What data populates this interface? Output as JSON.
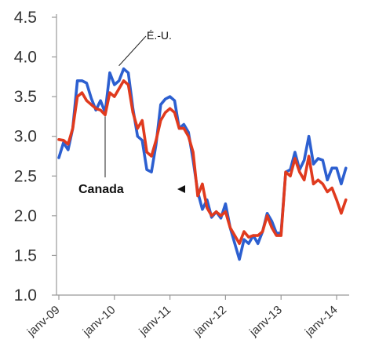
{
  "chart_data": {
    "type": "line",
    "title": "",
    "xlabel": "",
    "ylabel": "",
    "ylim": [
      1.0,
      4.5
    ],
    "yticks": [
      "1.0",
      "1.5",
      "2.0",
      "2.5",
      "3.0",
      "3.5",
      "4.0",
      "4.5"
    ],
    "xticks": [
      "janv-09",
      "janv-10",
      "janv-11",
      "janv-12",
      "janv-13",
      "janv-14"
    ],
    "grid": false,
    "legend": "none",
    "start_month": "janv-09",
    "annotations": [
      {
        "text": "É.-U.",
        "series": "É.-U."
      },
      {
        "text": "Canada",
        "series": "Canada"
      }
    ],
    "series": [
      {
        "name": "É.-U.",
        "color": "#2c5fd0",
        "values": [
          2.73,
          2.92,
          2.83,
          3.1,
          3.7,
          3.7,
          3.67,
          3.48,
          3.33,
          3.45,
          3.3,
          3.8,
          3.65,
          3.7,
          3.85,
          3.8,
          3.35,
          3.0,
          2.95,
          2.58,
          2.55,
          2.9,
          3.4,
          3.47,
          3.5,
          3.45,
          3.1,
          3.15,
          3.05,
          2.7,
          2.3,
          2.08,
          2.2,
          1.98,
          2.05,
          1.97,
          2.15,
          1.85,
          1.65,
          1.45,
          1.7,
          1.65,
          1.75,
          1.65,
          1.8,
          2.03,
          1.93,
          1.78,
          1.78,
          2.55,
          2.58,
          2.8,
          2.58,
          2.7,
          3.0,
          2.65,
          2.72,
          2.7,
          2.45,
          2.6,
          2.6,
          2.4,
          2.6
        ]
      },
      {
        "name": "Canada",
        "color": "#e03a1e",
        "values": [
          2.96,
          2.95,
          2.9,
          3.1,
          3.5,
          3.55,
          3.45,
          3.4,
          3.35,
          3.33,
          3.27,
          3.55,
          3.5,
          3.6,
          3.7,
          3.65,
          3.3,
          3.1,
          3.2,
          2.8,
          2.75,
          2.95,
          3.2,
          3.3,
          3.35,
          3.3,
          3.1,
          3.1,
          3.0,
          2.8,
          2.25,
          2.4,
          2.1,
          2.0,
          2.05,
          2.0,
          2.05,
          1.85,
          1.75,
          1.65,
          1.8,
          1.73,
          1.75,
          1.75,
          1.8,
          2.0,
          1.85,
          1.75,
          1.75,
          2.55,
          2.5,
          2.72,
          2.55,
          2.45,
          2.75,
          2.4,
          2.45,
          2.4,
          2.3,
          2.35,
          2.2,
          2.03,
          2.2
        ]
      }
    ]
  }
}
